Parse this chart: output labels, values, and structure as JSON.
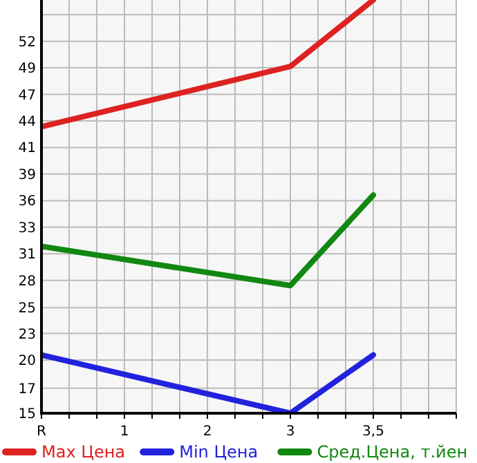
{
  "chart_data": {
    "type": "line",
    "categories": [
      "R",
      "1",
      "2",
      "3",
      "3,5"
    ],
    "series": [
      {
        "name": "Max Цена",
        "color": "#dd2222",
        "values": [
          43.5,
          null,
          null,
          49.5,
          56.1
        ]
      },
      {
        "name": "Min Цена",
        "color": "#2222dd",
        "values": [
          20.8,
          null,
          null,
          15,
          20.8
        ]
      },
      {
        "name": "Сред.Цена, т.йен",
        "color": "#118811",
        "values": [
          31.6,
          null,
          null,
          27.7,
          36.7
        ]
      }
    ],
    "ylim": [
      15,
      56.1
    ],
    "yticks": [
      {
        "value": 15,
        "label": "15"
      },
      {
        "value": 17.49,
        "label": "17"
      },
      {
        "value": 20.29,
        "label": "20"
      },
      {
        "value": 22.93,
        "label": "23"
      },
      {
        "value": 25.49,
        "label": "25"
      },
      {
        "value": 28.21,
        "label": "28"
      },
      {
        "value": 30.86,
        "label": "31"
      },
      {
        "value": 33.5,
        "label": "33"
      },
      {
        "value": 36.14,
        "label": "36"
      },
      {
        "value": 38.79,
        "label": "39"
      },
      {
        "value": 41.43,
        "label": "41"
      },
      {
        "value": 44.07,
        "label": "44"
      },
      {
        "value": 46.71,
        "label": "47"
      },
      {
        "value": 49.36,
        "label": "49"
      },
      {
        "value": 52,
        "label": "52"
      }
    ],
    "grid": true,
    "legend": "bottom",
    "marker": "none",
    "line_style": "solid"
  }
}
